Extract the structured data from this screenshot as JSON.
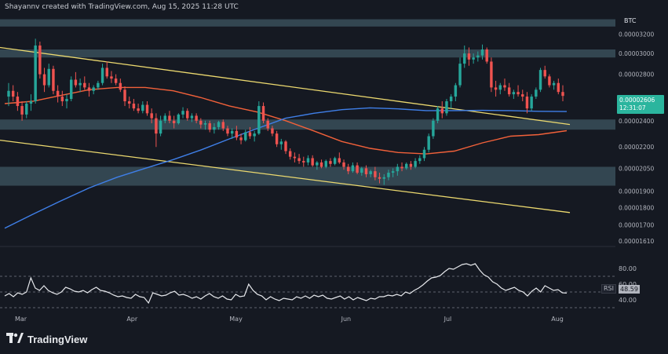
{
  "header": {
    "credit": "Shayannv created with TradingView.com, Aug 15, 2025 11:28 UTC",
    "ticker": "BTC"
  },
  "price_badge": {
    "price": "0.00002606",
    "countdown": "12:31:07",
    "color": "#2bb59e"
  },
  "rsi_badge": {
    "name": "RSI",
    "value": "48.59"
  },
  "branding": {
    "logo_text": "TradingView",
    "logo_icon": "tradingview-logo-icon"
  },
  "colors": {
    "background": "#151922",
    "up_candle": "#26a69a",
    "down_candle": "#ef5350",
    "zone": "#3d5562",
    "channel": "#ecd96f",
    "ma_orange": "#f2613a",
    "ma_blue": "#3f7fe8",
    "rsi_line": "#e6e8ec"
  },
  "chart_data": [
    {
      "type": "candlestick",
      "title": "",
      "x_axis": {
        "tick_labels": [
          "Mar",
          "Apr",
          "May",
          "Jun",
          "Jul",
          "Aug"
        ]
      },
      "y_axis": {
        "tick_labels": [
          "0.00003200",
          "0.00003000",
          "0.00002800",
          "0.00002400",
          "0.00002200",
          "0.00002050",
          "0.00001900",
          "0.00001800",
          "0.00001700",
          "0.00001610"
        ],
        "scale": "log",
        "range": [
          1.59e-05,
          3.4e-05
        ]
      },
      "grid": false,
      "ohlc": [
        [
          2.6e-05,
          2.72e-05,
          2.52e-05,
          2.65e-05
        ],
        [
          2.65e-05,
          2.7e-05,
          2.56e-05,
          2.6e-05
        ],
        [
          2.6e-05,
          2.64e-05,
          2.48e-05,
          2.52e-05
        ],
        [
          2.52e-05,
          2.56e-05,
          2.4e-05,
          2.45e-05
        ],
        [
          2.45e-05,
          2.56e-05,
          2.42e-05,
          2.54e-05
        ],
        [
          2.54e-05,
          2.62e-05,
          2.48e-05,
          2.56e-05
        ],
        [
          2.56e-05,
          3.15e-05,
          2.54e-05,
          3.08e-05
        ],
        [
          3.08e-05,
          3.12e-05,
          2.76e-05,
          2.8e-05
        ],
        [
          2.8e-05,
          2.86e-05,
          2.64e-05,
          2.7e-05
        ],
        [
          2.7e-05,
          2.9e-05,
          2.68e-05,
          2.85e-05
        ],
        [
          2.85e-05,
          2.88e-05,
          2.62e-05,
          2.65e-05
        ],
        [
          2.65e-05,
          2.7e-05,
          2.55e-05,
          2.6e-05
        ],
        [
          2.6e-05,
          2.65e-05,
          2.52e-05,
          2.56e-05
        ],
        [
          2.56e-05,
          2.62e-05,
          2.5e-05,
          2.58e-05
        ],
        [
          2.58e-05,
          2.78e-05,
          2.56e-05,
          2.75e-05
        ],
        [
          2.75e-05,
          2.82e-05,
          2.68e-05,
          2.7e-05
        ],
        [
          2.7e-05,
          2.76e-05,
          2.64e-05,
          2.72e-05
        ],
        [
          2.72e-05,
          2.78e-05,
          2.66e-05,
          2.68e-05
        ],
        [
          2.68e-05,
          2.72e-05,
          2.6e-05,
          2.65e-05
        ],
        [
          2.65e-05,
          2.7e-05,
          2.62e-05,
          2.68e-05
        ],
        [
          2.68e-05,
          2.74e-05,
          2.66e-05,
          2.72e-05
        ],
        [
          2.72e-05,
          2.9e-05,
          2.7e-05,
          2.86e-05
        ],
        [
          2.86e-05,
          2.92e-05,
          2.76e-05,
          2.78e-05
        ],
        [
          2.78e-05,
          2.83e-05,
          2.72e-05,
          2.76e-05
        ],
        [
          2.76e-05,
          2.8e-05,
          2.7e-05,
          2.72e-05
        ],
        [
          2.72e-05,
          2.76e-05,
          2.64e-05,
          2.66e-05
        ],
        [
          2.66e-05,
          2.69e-05,
          2.52e-05,
          2.56e-05
        ],
        [
          2.56e-05,
          2.6e-05,
          2.5e-05,
          2.54e-05
        ],
        [
          2.54e-05,
          2.58e-05,
          2.48e-05,
          2.5e-05
        ],
        [
          2.5e-05,
          2.54e-05,
          2.46e-05,
          2.48e-05
        ],
        [
          2.48e-05,
          2.56e-05,
          2.46e-05,
          2.53e-05
        ],
        [
          2.53e-05,
          2.56e-05,
          2.44e-05,
          2.46e-05
        ],
        [
          2.46e-05,
          2.5e-05,
          2.38e-05,
          2.42e-05
        ],
        [
          2.42e-05,
          2.46e-05,
          2.2e-05,
          2.3e-05
        ],
        [
          2.3e-05,
          2.44e-05,
          2.28e-05,
          2.4e-05
        ],
        [
          2.4e-05,
          2.46e-05,
          2.38e-05,
          2.44e-05
        ],
        [
          2.44e-05,
          2.48e-05,
          2.38e-05,
          2.4e-05
        ],
        [
          2.4e-05,
          2.44e-05,
          2.34e-05,
          2.38e-05
        ],
        [
          2.38e-05,
          2.46e-05,
          2.37e-05,
          2.45e-05
        ],
        [
          2.45e-05,
          2.51e-05,
          2.42e-05,
          2.48e-05
        ],
        [
          2.48e-05,
          2.5e-05,
          2.4e-05,
          2.42e-05
        ],
        [
          2.42e-05,
          2.46e-05,
          2.39e-05,
          2.44e-05
        ],
        [
          2.44e-05,
          2.46e-05,
          2.38e-05,
          2.4e-05
        ],
        [
          2.4e-05,
          2.42e-05,
          2.34e-05,
          2.37e-05
        ],
        [
          2.37e-05,
          2.4e-05,
          2.33e-05,
          2.38e-05
        ],
        [
          2.38e-05,
          2.4e-05,
          2.31e-05,
          2.33e-05
        ],
        [
          2.33e-05,
          2.38e-05,
          2.3e-05,
          2.35e-05
        ],
        [
          2.35e-05,
          2.4e-05,
          2.33e-05,
          2.39e-05
        ],
        [
          2.39e-05,
          2.41e-05,
          2.32e-05,
          2.34e-05
        ],
        [
          2.34e-05,
          2.36e-05,
          2.28e-05,
          2.3e-05
        ],
        [
          2.3e-05,
          2.34e-05,
          2.26e-05,
          2.32e-05
        ],
        [
          2.32e-05,
          2.36e-05,
          2.25e-05,
          2.27e-05
        ],
        [
          2.27e-05,
          2.3e-05,
          2.22e-05,
          2.25e-05
        ],
        [
          2.25e-05,
          2.33e-05,
          2.24e-05,
          2.31e-05
        ],
        [
          2.31e-05,
          2.35e-05,
          2.26e-05,
          2.28e-05
        ],
        [
          2.28e-05,
          2.32e-05,
          2.24e-05,
          2.3e-05
        ],
        [
          2.3e-05,
          2.56e-05,
          2.29e-05,
          2.52e-05
        ],
        [
          2.52e-05,
          2.55e-05,
          2.38e-05,
          2.4e-05
        ],
        [
          2.4e-05,
          2.42e-05,
          2.32e-05,
          2.34e-05
        ],
        [
          2.34e-05,
          2.36e-05,
          2.28e-05,
          2.3e-05
        ],
        [
          2.3e-05,
          2.32e-05,
          2.2e-05,
          2.22e-05
        ],
        [
          2.22e-05,
          2.26e-05,
          2.18e-05,
          2.24e-05
        ],
        [
          2.24e-05,
          2.25e-05,
          2.15e-05,
          2.17e-05
        ],
        [
          2.17e-05,
          2.19e-05,
          2.11e-05,
          2.13e-05
        ],
        [
          2.13e-05,
          2.16e-05,
          2.09e-05,
          2.12e-05
        ],
        [
          2.12e-05,
          2.15e-05,
          2.08e-05,
          2.1e-05
        ],
        [
          2.1e-05,
          2.13e-05,
          2.06e-05,
          2.09e-05
        ],
        [
          2.09e-05,
          2.14e-05,
          2.07e-05,
          2.12e-05
        ],
        [
          2.12e-05,
          2.14e-05,
          2.06e-05,
          2.07e-05
        ],
        [
          2.07e-05,
          2.1e-05,
          2.04e-05,
          2.09e-05
        ],
        [
          2.09e-05,
          2.11e-05,
          2.05e-05,
          2.06e-05
        ],
        [
          2.06e-05,
          2.11e-05,
          2.05e-05,
          2.1e-05
        ],
        [
          2.1e-05,
          2.12e-05,
          2.06e-05,
          2.08e-05
        ],
        [
          2.08e-05,
          2.13e-05,
          2.07e-05,
          2.12e-05
        ],
        [
          2.12e-05,
          2.16e-05,
          2.08e-05,
          2.09e-05
        ],
        [
          2.09e-05,
          2.11e-05,
          2.04e-05,
          2.06e-05
        ],
        [
          2.06e-05,
          2.08e-05,
          2.01e-05,
          2.03e-05
        ],
        [
          2.03e-05,
          2.09e-05,
          2.02e-05,
          2.07e-05
        ],
        [
          2.07e-05,
          2.09e-05,
          2.01e-05,
          2.02e-05
        ],
        [
          2.02e-05,
          2.06e-05,
          2e-05,
          2.05e-05
        ],
        [
          2.05e-05,
          2.07e-05,
          1.99e-05,
          2.01e-05
        ],
        [
          2.01e-05,
          2.04e-05,
          1.99e-05,
          2.03e-05
        ],
        [
          2.03e-05,
          2.06e-05,
          1.97e-05,
          1.99e-05
        ],
        [
          1.99e-05,
          2.02e-05,
          1.95e-05,
          1.98e-05
        ],
        [
          1.98e-05,
          2.01e-05,
          1.94e-05,
          1.99e-05
        ],
        [
          1.99e-05,
          2.04e-05,
          1.97e-05,
          2.02e-05
        ],
        [
          2.02e-05,
          2.05e-05,
          1.99e-05,
          2.03e-05
        ],
        [
          2.03e-05,
          2.08e-05,
          2e-05,
          2.06e-05
        ],
        [
          2.06e-05,
          2.09e-05,
          2.03e-05,
          2.05e-05
        ],
        [
          2.05e-05,
          2.09e-05,
          2.04e-05,
          2.08e-05
        ],
        [
          2.08e-05,
          2.1e-05,
          2.04e-05,
          2.06e-05
        ],
        [
          2.06e-05,
          2.12e-05,
          2.05e-05,
          2.1e-05
        ],
        [
          2.1e-05,
          2.14e-05,
          2.08e-05,
          2.12e-05
        ],
        [
          2.12e-05,
          2.2e-05,
          2.1e-05,
          2.18e-05
        ],
        [
          2.18e-05,
          2.3e-05,
          2.16e-05,
          2.28e-05
        ],
        [
          2.28e-05,
          2.42e-05,
          2.26e-05,
          2.4e-05
        ],
        [
          2.4e-05,
          2.52e-05,
          2.38e-05,
          2.5e-05
        ],
        [
          2.5e-05,
          2.56e-05,
          2.42e-05,
          2.46e-05
        ],
        [
          2.46e-05,
          2.58e-05,
          2.44e-05,
          2.56e-05
        ],
        [
          2.56e-05,
          2.62e-05,
          2.5e-05,
          2.6e-05
        ],
        [
          2.6e-05,
          2.72e-05,
          2.56e-05,
          2.7e-05
        ],
        [
          2.7e-05,
          2.96e-05,
          2.68e-05,
          2.9e-05
        ],
        [
          2.9e-05,
          3.08e-05,
          2.86e-05,
          3e-05
        ],
        [
          3e-05,
          3.06e-05,
          2.88e-05,
          2.94e-05
        ],
        [
          2.94e-05,
          3e-05,
          2.9e-05,
          2.96e-05
        ],
        [
          2.96e-05,
          3.02e-05,
          2.92e-05,
          2.98e-05
        ],
        [
          2.98e-05,
          3.09e-05,
          2.94e-05,
          3.04e-05
        ],
        [
          3.04e-05,
          3.06e-05,
          2.9e-05,
          2.92e-05
        ],
        [
          2.92e-05,
          2.96e-05,
          2.64e-05,
          2.68e-05
        ],
        [
          2.68e-05,
          2.74e-05,
          2.6e-05,
          2.66e-05
        ],
        [
          2.66e-05,
          2.72e-05,
          2.62e-05,
          2.7e-05
        ],
        [
          2.7e-05,
          2.76e-05,
          2.65e-05,
          2.68e-05
        ],
        [
          2.68e-05,
          2.72e-05,
          2.6e-05,
          2.62e-05
        ],
        [
          2.62e-05,
          2.66e-05,
          2.58e-05,
          2.64e-05
        ],
        [
          2.64e-05,
          2.7e-05,
          2.6e-05,
          2.62e-05
        ],
        [
          2.62e-05,
          2.66e-05,
          2.56e-05,
          2.6e-05
        ],
        [
          2.6e-05,
          2.64e-05,
          2.46e-05,
          2.5e-05
        ],
        [
          2.5e-05,
          2.62e-05,
          2.48e-05,
          2.6e-05
        ],
        [
          2.6e-05,
          2.68e-05,
          2.58e-05,
          2.66e-05
        ],
        [
          2.66e-05,
          2.86e-05,
          2.64e-05,
          2.84e-05
        ],
        [
          2.84e-05,
          2.88e-05,
          2.76e-05,
          2.78e-05
        ],
        [
          2.78e-05,
          2.8e-05,
          2.68e-05,
          2.7e-05
        ],
        [
          2.7e-05,
          2.74e-05,
          2.66e-05,
          2.72e-05
        ],
        [
          2.72e-05,
          2.76e-05,
          2.62e-05,
          2.64e-05
        ],
        [
          2.64e-05,
          2.7e-05,
          2.56e-05,
          2.606e-05
        ]
      ],
      "zones": [
        {
          "from": 3.28e-05,
          "to": 3.36e-05
        },
        {
          "from": 2.96e-05,
          "to": 3.04e-05
        },
        {
          "from": 2.33e-05,
          "to": 2.41e-05
        },
        {
          "from": 1.935e-05,
          "to": 2.06e-05
        }
      ],
      "moving_averages": {
        "orange": [
          2.54e-05,
          2.56e-05,
          2.61e-05,
          2.66e-05,
          2.68e-05,
          2.68e-05,
          2.65e-05,
          2.59e-05,
          2.52e-05,
          2.47e-05,
          2.4e-05,
          2.32e-05,
          2.24e-05,
          2.19e-05,
          2.16e-05,
          2.15e-05,
          2.17e-05,
          2.23e-05,
          2.28e-05,
          2.292e-05,
          2.322e-05
        ],
        "blue": [
          1.68e-05,
          1.76e-05,
          1.84e-05,
          1.92e-05,
          1.99e-05,
          2.05e-05,
          2.11e-05,
          2.18e-05,
          2.26e-05,
          2.34e-05,
          2.42e-05,
          2.46e-05,
          2.49e-05,
          2.505e-05,
          2.496e-05,
          2.482e-05,
          2.482e-05,
          2.484e-05,
          2.482e-05,
          2.476e-05,
          2.474e-05
        ]
      },
      "channel": {
        "upper": {
          "start": 3.06e-05,
          "end": 2.37e-05
        },
        "lower": {
          "start": 2.25e-05,
          "end": 1.77e-05
        }
      }
    },
    {
      "type": "line",
      "title": "",
      "y_axis": {
        "tick_labels": [
          "80.00",
          "60.00",
          "40.00"
        ],
        "range": [
          30,
          100
        ]
      },
      "grid": false,
      "reference_levels": [
        70,
        50,
        30
      ],
      "series": [
        {
          "values": [
            45,
            48,
            44,
            49,
            47,
            50,
            68,
            55,
            52,
            58,
            52,
            49,
            47,
            50,
            56,
            54,
            51,
            50,
            52,
            49,
            53,
            56,
            52,
            51,
            49,
            46,
            44,
            45,
            43,
            42,
            47,
            44,
            43,
            36,
            49,
            47,
            45,
            46,
            49,
            51,
            46,
            47,
            45,
            42,
            44,
            41,
            45,
            48,
            44,
            42,
            45,
            41,
            40,
            47,
            44,
            45,
            60,
            52,
            47,
            45,
            40,
            44,
            41,
            39,
            42,
            41,
            40,
            44,
            42,
            45,
            42,
            46,
            44,
            46,
            42,
            41,
            43,
            45,
            41,
            44,
            40,
            43,
            41,
            39,
            42,
            41,
            44,
            44,
            46,
            45,
            47,
            45,
            50,
            48,
            52,
            55,
            59,
            64,
            68,
            69,
            71,
            76,
            80,
            79,
            82,
            85,
            86,
            84,
            86,
            78,
            72,
            69,
            63,
            60,
            55,
            52,
            54,
            56,
            52,
            50,
            45,
            51,
            55,
            50,
            58,
            55,
            52,
            53,
            49,
            48.59
          ]
        }
      ]
    }
  ]
}
